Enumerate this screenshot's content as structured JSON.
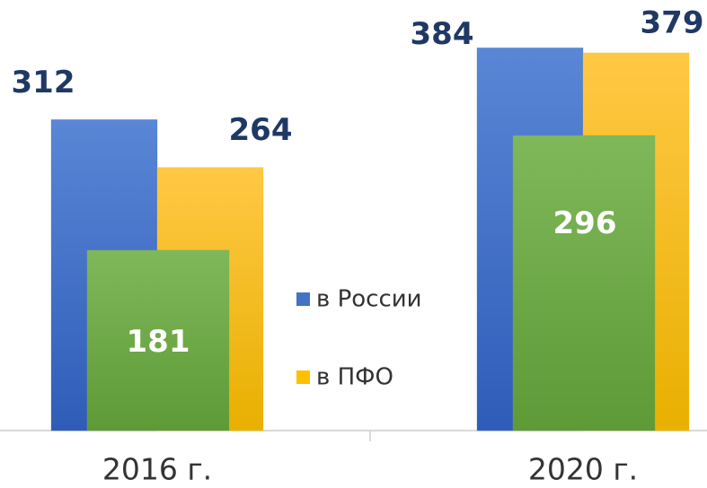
{
  "chart_data": {
    "type": "bar",
    "categories": [
      "2016 г.",
      "2020 г."
    ],
    "series": [
      {
        "name": "в России",
        "color": "#4472c4",
        "values": [
          312,
          384
        ]
      },
      {
        "name": "в ПФО",
        "color": "#ffc000",
        "values": [
          264,
          379
        ]
      },
      {
        "color": "#70ad47",
        "values": [
          181,
          296
        ]
      }
    ],
    "ylim": [
      0,
      432
    ],
    "legend": "center"
  }
}
